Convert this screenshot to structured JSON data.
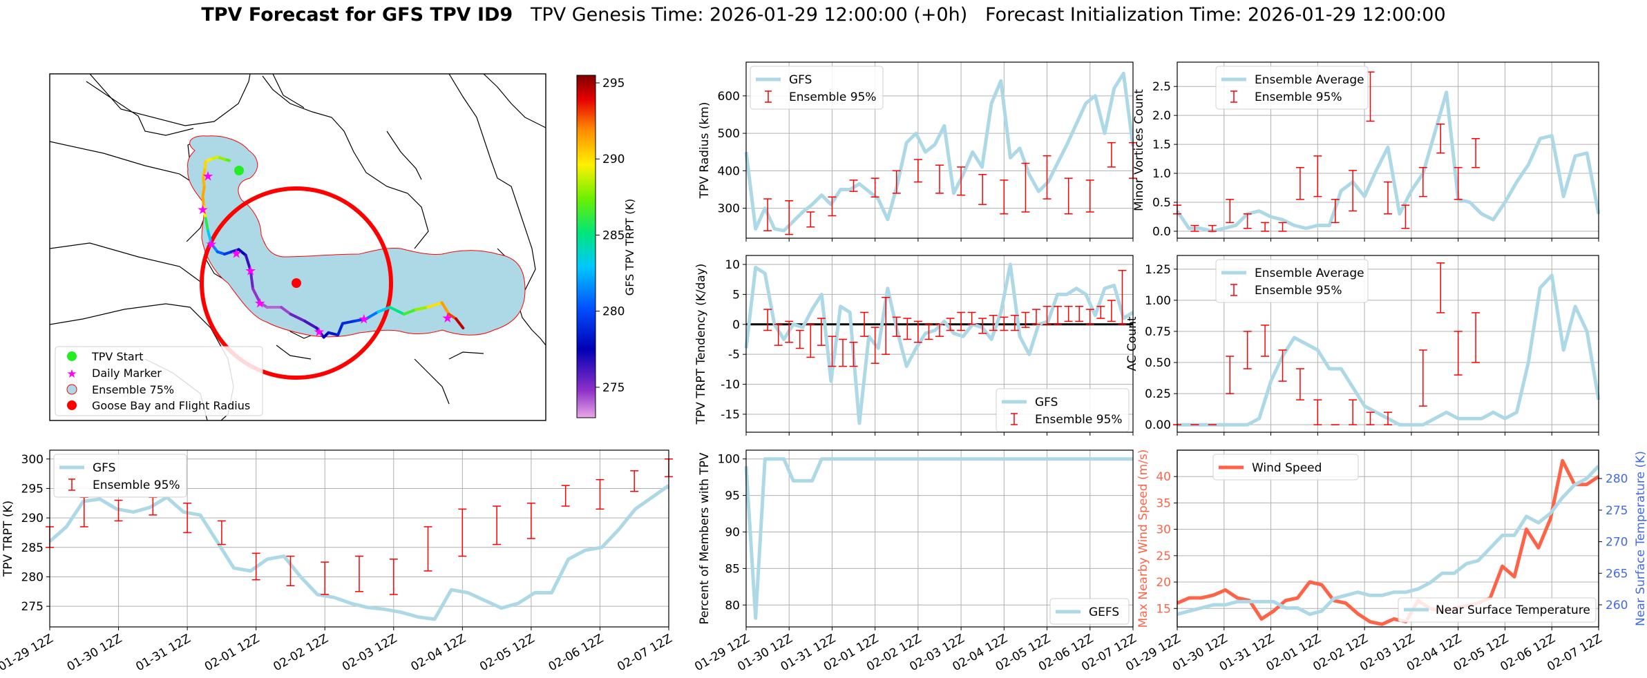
{
  "title": {
    "bold": "TPV Forecast for GFS TPV ID9",
    "genesis": "TPV Genesis Time: 2026-01-29 12:00:00 (+0h)",
    "init": "Forecast Initialization Time: 2026-01-29 12:00:00"
  },
  "colors": {
    "lightblue": "#add8e6",
    "red": "#ff0000",
    "wind": "#ff6347",
    "temp": "#4169e1",
    "grid": "#b0b0b0"
  },
  "time_ticks": [
    "01-29 12Z",
    "01-30 12Z",
    "01-31 12Z",
    "02-01 12Z",
    "02-02 12Z",
    "02-03 12Z",
    "02-04 12Z",
    "02-05 12Z",
    "02-06 12Z",
    "02-07 12Z"
  ],
  "map": {
    "colorbar_label": "GFS TPV TRPT (K)",
    "colorbar_ticks": [
      "275",
      "280",
      "285",
      "290",
      "295"
    ],
    "colorbar_range": [
      273,
      295.5
    ],
    "legend": [
      "TPV Start",
      "Daily Marker",
      "Ensemble 75%",
      "Goose Bay and Flight Radius"
    ],
    "track": [
      {
        "lon": -62,
        "lat": 70.5,
        "t": 286.5
      },
      {
        "lon": -63,
        "lat": 70.6,
        "t": 287.5
      },
      {
        "lon": -64.5,
        "lat": 70.8,
        "t": 288.5
      },
      {
        "lon": -66,
        "lat": 70.6,
        "t": 289.5
      },
      {
        "lon": -67,
        "lat": 70.4,
        "t": 290
      },
      {
        "lon": -67.2,
        "lat": 69.7,
        "t": 290.5
      },
      {
        "lon": -67.5,
        "lat": 69,
        "t": 291
      },
      {
        "lon": -67.3,
        "lat": 68.2,
        "t": 291
      },
      {
        "lon": -67.6,
        "lat": 67.4,
        "t": 291.5
      },
      {
        "lon": -67.4,
        "lat": 66.5,
        "t": 291
      },
      {
        "lon": -67.0,
        "lat": 65.5,
        "t": 288
      },
      {
        "lon": -66.5,
        "lat": 64.4,
        "t": 284
      },
      {
        "lon": -65.8,
        "lat": 63.3,
        "t": 282
      },
      {
        "lon": -64.5,
        "lat": 62.6,
        "t": 281
      },
      {
        "lon": -63,
        "lat": 62.4,
        "t": 280
      },
      {
        "lon": -61.5,
        "lat": 62.6,
        "t": 279
      },
      {
        "lon": -60,
        "lat": 62.8,
        "t": 278
      },
      {
        "lon": -58.5,
        "lat": 62.3,
        "t": 277
      },
      {
        "lon": -57.5,
        "lat": 61.0,
        "t": 276
      },
      {
        "lon": -57.0,
        "lat": 59.4,
        "t": 275
      },
      {
        "lon": -55.5,
        "lat": 58.2,
        "t": 274.5
      },
      {
        "lon": -54,
        "lat": 57.8,
        "t": 274
      },
      {
        "lon": -51,
        "lat": 57.8,
        "t": 274
      },
      {
        "lon": -49,
        "lat": 57.2,
        "t": 275
      },
      {
        "lon": -46,
        "lat": 56.6,
        "t": 276
      },
      {
        "lon": -43.5,
        "lat": 56.0,
        "t": 276.5
      },
      {
        "lon": -42,
        "lat": 55.2,
        "t": 277
      },
      {
        "lon": -41,
        "lat": 55.6,
        "t": 278
      },
      {
        "lon": -39,
        "lat": 55.4,
        "t": 278.5
      },
      {
        "lon": -38,
        "lat": 56.4,
        "t": 279
      },
      {
        "lon": -35.5,
        "lat": 56.6,
        "t": 279
      },
      {
        "lon": -33,
        "lat": 56.8,
        "t": 280
      },
      {
        "lon": -30.5,
        "lat": 57.4,
        "t": 282
      },
      {
        "lon": -28,
        "lat": 57.8,
        "t": 284
      },
      {
        "lon": -25,
        "lat": 57.2,
        "t": 286
      },
      {
        "lon": -22.5,
        "lat": 57.6,
        "t": 287
      },
      {
        "lon": -20,
        "lat": 57.8,
        "t": 289
      },
      {
        "lon": -17,
        "lat": 58.2,
        "t": 291
      },
      {
        "lon": -15.5,
        "lat": 57.2,
        "t": 292
      },
      {
        "lon": -14,
        "lat": 56.8,
        "t": 294
      },
      {
        "lon": -12.5,
        "lat": 56.0,
        "t": 295
      }
    ],
    "start": {
      "lon": -62,
      "lat": 70.5
    },
    "daily_markers": [
      {
        "lon": -66.5,
        "lat": 69.2
      },
      {
        "lon": -67.6,
        "lat": 66.3
      },
      {
        "lon": -65.8,
        "lat": 63.3
      },
      {
        "lon": -60.5,
        "lat": 62.5
      },
      {
        "lon": -57.5,
        "lat": 61.0
      },
      {
        "lon": -55.5,
        "lat": 58.2
      },
      {
        "lon": -43,
        "lat": 55.7
      },
      {
        "lon": -33.5,
        "lat": 56.8
      },
      {
        "lon": -15.8,
        "lat": 56.9
      }
    ],
    "goose_bay": {
      "lon": -60.4,
      "lat": 53.3
    },
    "flight_radius_deg": 8
  },
  "radius": {
    "ylabel": "TPV Radius (km)",
    "yticks": [
      300,
      400,
      500,
      600
    ],
    "ylim": [
      220,
      690
    ],
    "legend": [
      "GFS",
      "Ensemble 95%"
    ],
    "gfs": [
      450,
      245,
      300,
      245,
      240,
      265,
      290,
      310,
      335,
      310,
      350,
      350,
      365,
      345,
      325,
      270,
      360,
      475,
      500,
      450,
      470,
      520,
      340,
      390,
      450,
      410,
      580,
      640,
      435,
      460,
      390,
      345,
      370,
      420,
      470,
      525,
      580,
      600,
      500,
      620,
      660,
      465
    ],
    "ens": [
      {
        "t": 4,
        "lo": 240,
        "hi": 325
      },
      {
        "t": 8,
        "lo": 230,
        "hi": 320
      },
      {
        "t": 12,
        "lo": 250,
        "hi": 290
      },
      {
        "t": 16,
        "lo": 280,
        "hi": 330
      },
      {
        "t": 20,
        "lo": 345,
        "hi": 375
      },
      {
        "t": 24,
        "lo": 330,
        "hi": 380
      },
      {
        "t": 28,
        "lo": 340,
        "hi": 400
      },
      {
        "t": 32,
        "lo": 370,
        "hi": 430
      },
      {
        "t": 36,
        "lo": 340,
        "hi": 415
      },
      {
        "t": 40,
        "lo": 335,
        "hi": 410
      },
      {
        "t": 44,
        "lo": 310,
        "hi": 390
      },
      {
        "t": 48,
        "lo": 285,
        "hi": 375
      },
      {
        "t": 52,
        "lo": 290,
        "hi": 420
      },
      {
        "t": 56,
        "lo": 325,
        "hi": 440
      },
      {
        "t": 60,
        "lo": 285,
        "hi": 380
      },
      {
        "t": 64,
        "lo": 290,
        "hi": 375
      },
      {
        "t": 68,
        "lo": 410,
        "hi": 475
      },
      {
        "t": 72,
        "lo": 380,
        "hi": 475
      }
    ]
  },
  "tendency": {
    "ylabel": "TPV TRPT Tendency (K/day)",
    "yticks": [
      -15,
      -10,
      -5,
      0,
      5,
      10
    ],
    "ylim": [
      -18,
      11.5
    ],
    "legend": [
      "GFS",
      "Ensemble 95%"
    ],
    "gfs": [
      -4,
      9.5,
      8.5,
      0,
      -2.5,
      0,
      -0.5,
      2.5,
      5,
      -9.5,
      3,
      2,
      -16.5,
      -2,
      -4,
      6,
      -1,
      -7,
      -4,
      -1.5,
      -1,
      0.5,
      -1.5,
      -2,
      0,
      -0.5,
      -2.5,
      2,
      10,
      -2,
      -5,
      0,
      0.5,
      5,
      5,
      6,
      5,
      1.5,
      6,
      6.5,
      1,
      2
    ],
    "ens": [
      {
        "t": 4,
        "lo": -1,
        "hi": 2.5
      },
      {
        "t": 6,
        "lo": -3.5,
        "hi": 0
      },
      {
        "t": 8,
        "lo": -3,
        "hi": 0.5
      },
      {
        "t": 10,
        "lo": -4,
        "hi": -1
      },
      {
        "t": 12,
        "lo": -5.5,
        "hi": 0
      },
      {
        "t": 14,
        "lo": -3.5,
        "hi": 1
      },
      {
        "t": 16,
        "lo": -7,
        "hi": -2
      },
      {
        "t": 18,
        "lo": -7,
        "hi": -2.5
      },
      {
        "t": 20,
        "lo": -7,
        "hi": -3
      },
      {
        "t": 22,
        "lo": -2,
        "hi": 2
      },
      {
        "t": 24,
        "lo": -6.5,
        "hi": -0.5
      },
      {
        "t": 26,
        "lo": -5,
        "hi": 4.5
      },
      {
        "t": 28,
        "lo": -2,
        "hi": 1.2
      },
      {
        "t": 30,
        "lo": -2.5,
        "hi": 1
      },
      {
        "t": 32,
        "lo": -3,
        "hi": 0.5
      },
      {
        "t": 34,
        "lo": -2.5,
        "hi": 0
      },
      {
        "t": 36,
        "lo": -2,
        "hi": 0
      },
      {
        "t": 38,
        "lo": -1,
        "hi": 1
      },
      {
        "t": 40,
        "lo": -1,
        "hi": 2
      },
      {
        "t": 42,
        "lo": 0,
        "hi": 2
      },
      {
        "t": 44,
        "lo": -1.5,
        "hi": 1
      },
      {
        "t": 46,
        "lo": -1,
        "hi": 1.5
      },
      {
        "t": 48,
        "lo": -1,
        "hi": 1.2
      },
      {
        "t": 50,
        "lo": -1,
        "hi": 1.5
      },
      {
        "t": 52,
        "lo": -0.5,
        "hi": 2
      },
      {
        "t": 54,
        "lo": 0,
        "hi": 2.5
      },
      {
        "t": 56,
        "lo": 0,
        "hi": 3
      },
      {
        "t": 58,
        "lo": 0,
        "hi": 3
      },
      {
        "t": 60,
        "lo": 0.5,
        "hi": 3
      },
      {
        "t": 62,
        "lo": 0.5,
        "hi": 3
      },
      {
        "t": 64,
        "lo": 0,
        "hi": 2.5
      },
      {
        "t": 66,
        "lo": 1,
        "hi": 3
      },
      {
        "t": 68,
        "lo": 0.5,
        "hi": 4
      },
      {
        "t": 70,
        "lo": 0,
        "hi": 9
      }
    ]
  },
  "minor": {
    "ylabel": "Minor Vortices Count",
    "yticks": [
      "0.0",
      "0.5",
      "1.0",
      "1.5",
      "2.0",
      "2.5"
    ],
    "ylim": [
      -0.12,
      2.92
    ],
    "legend": [
      "Ensemble Average",
      "Ensemble 95%"
    ],
    "avg": [
      0.35,
      0.05,
      0.05,
      0.0,
      0.05,
      0.1,
      0.3,
      0.35,
      0.25,
      0.2,
      0.1,
      0.05,
      0.1,
      0.1,
      0.7,
      0.85,
      0.6,
      1.05,
      1.45,
      0.3,
      0.7,
      1.0,
      1.7,
      2.4,
      0.55,
      0.5,
      0.3,
      0.2,
      0.5,
      0.85,
      1.15,
      1.6,
      1.65,
      0.6,
      1.3,
      1.35,
      0.3
    ],
    "ens": [
      {
        "t": 0,
        "lo": 0.3,
        "hi": 0.45
      },
      {
        "t": 3,
        "lo": 0,
        "hi": 0.1
      },
      {
        "t": 6,
        "lo": 0,
        "hi": 0.1
      },
      {
        "t": 9,
        "lo": 0.15,
        "hi": 0.55
      },
      {
        "t": 12,
        "lo": 0.05,
        "hi": 0.3
      },
      {
        "t": 15,
        "lo": 0,
        "hi": 0.15
      },
      {
        "t": 18,
        "lo": 0,
        "hi": 0.15
      },
      {
        "t": 21,
        "lo": 0.55,
        "hi": 1.1
      },
      {
        "t": 24,
        "lo": 0.6,
        "hi": 1.3
      },
      {
        "t": 27,
        "lo": 0.15,
        "hi": 0.55
      },
      {
        "t": 30,
        "lo": 0.35,
        "hi": 1.05
      },
      {
        "t": 33,
        "lo": 1.9,
        "hi": 2.75
      },
      {
        "t": 36,
        "lo": 0.3,
        "hi": 0.85
      },
      {
        "t": 39,
        "lo": 0.05,
        "hi": 0.45
      },
      {
        "t": 42,
        "lo": 0.6,
        "hi": 1.1
      },
      {
        "t": 45,
        "lo": 1.35,
        "hi": 1.85
      },
      {
        "t": 48,
        "lo": 0.55,
        "hi": 1.1
      },
      {
        "t": 51,
        "lo": 1.1,
        "hi": 1.6
      }
    ]
  },
  "ac": {
    "ylabel": "AC Count",
    "yticks": [
      "0.00",
      "0.25",
      "0.50",
      "0.75",
      "1.00",
      "1.25"
    ],
    "ylim": [
      -0.06,
      1.36
    ],
    "legend": [
      "Ensemble Average",
      "Ensemble 95%"
    ],
    "avg": [
      0,
      0,
      0,
      0,
      0,
      0,
      0,
      0.05,
      0.35,
      0.55,
      0.7,
      0.65,
      0.6,
      0.45,
      0.45,
      0.3,
      0.15,
      0.1,
      0.05,
      0.0,
      0.0,
      0.0,
      0.05,
      0.1,
      0.05,
      0.05,
      0.05,
      0.1,
      0.05,
      0.1,
      0.5,
      1.1,
      1.2,
      0.6,
      0.95,
      0.75,
      0.2
    ],
    "ens": [
      {
        "t": 0,
        "lo": 0,
        "hi": 0
      },
      {
        "t": 3,
        "lo": 0,
        "hi": 0
      },
      {
        "t": 6,
        "lo": 0,
        "hi": 0
      },
      {
        "t": 9,
        "lo": 0.25,
        "hi": 0.55
      },
      {
        "t": 12,
        "lo": 0.45,
        "hi": 0.75
      },
      {
        "t": 15,
        "lo": 0.55,
        "hi": 0.8
      },
      {
        "t": 18,
        "lo": 0.35,
        "hi": 0.6
      },
      {
        "t": 21,
        "lo": 0.2,
        "hi": 0.45
      },
      {
        "t": 24,
        "lo": 0,
        "hi": 0.2
      },
      {
        "t": 27,
        "lo": 0,
        "hi": 0
      },
      {
        "t": 30,
        "lo": 0,
        "hi": 0.2
      },
      {
        "t": 33,
        "lo": 0,
        "hi": 0.1
      },
      {
        "t": 36,
        "lo": 0,
        "hi": 0.1
      },
      {
        "t": 42,
        "lo": 0.15,
        "hi": 0.6
      },
      {
        "t": 45,
        "lo": 0.9,
        "hi": 1.3
      },
      {
        "t": 48,
        "lo": 0.4,
        "hi": 0.75
      },
      {
        "t": 51,
        "lo": 0.5,
        "hi": 0.9
      }
    ]
  },
  "trpt": {
    "ylabel": "TPV TRPT (K)",
    "yticks": [
      275,
      280,
      285,
      290,
      295,
      300
    ],
    "ylim": [
      271.5,
      301.5
    ],
    "legend": [
      "GFS",
      "Ensemble 95%"
    ],
    "gfs": [
      286,
      288.5,
      292.8,
      293.2,
      291.5,
      291,
      291.8,
      293.5,
      291,
      290.5,
      286,
      281.5,
      281,
      283,
      283.5,
      280,
      277,
      276.5,
      275.5,
      274.8,
      274.5,
      274,
      273.2,
      272.8,
      277.8,
      277.3,
      276,
      274.7,
      275.5,
      277.3,
      277.3,
      283,
      284.5,
      285,
      288,
      291.5,
      293.5,
      295.5
    ],
    "ens": [
      {
        "t": 0,
        "lo": 285,
        "hi": 288.5
      },
      {
        "t": 4,
        "lo": 288.5,
        "hi": 293.5
      },
      {
        "t": 8,
        "lo": 289.5,
        "hi": 293
      },
      {
        "t": 12,
        "lo": 290.5,
        "hi": 293.5
      },
      {
        "t": 16,
        "lo": 287.5,
        "hi": 292.5
      },
      {
        "t": 20,
        "lo": 285.5,
        "hi": 289.5
      },
      {
        "t": 24,
        "lo": 279.5,
        "hi": 284
      },
      {
        "t": 28,
        "lo": 278.5,
        "hi": 283.5
      },
      {
        "t": 32,
        "lo": 277,
        "hi": 282.5
      },
      {
        "t": 36,
        "lo": 277.5,
        "hi": 283.5
      },
      {
        "t": 40,
        "lo": 277,
        "hi": 283
      },
      {
        "t": 44,
        "lo": 281,
        "hi": 288.5
      },
      {
        "t": 48,
        "lo": 283.5,
        "hi": 291.5
      },
      {
        "t": 52,
        "lo": 285.5,
        "hi": 292
      },
      {
        "t": 56,
        "lo": 286.5,
        "hi": 292.5
      },
      {
        "t": 60,
        "lo": 292,
        "hi": 295.5
      },
      {
        "t": 64,
        "lo": 291.5,
        "hi": 296.5
      },
      {
        "t": 68,
        "lo": 294.5,
        "hi": 298
      },
      {
        "t": 72,
        "lo": 297,
        "hi": 300
      }
    ]
  },
  "members": {
    "ylabel": "Percent of Members with TPV",
    "yticks": [
      80,
      85,
      90,
      95,
      100
    ],
    "ylim": [
      77,
      101.2
    ],
    "legend": [
      "GEFS"
    ],
    "values": [
      99,
      78.2,
      100,
      100,
      100,
      97,
      97,
      97,
      100,
      100,
      100,
      100,
      100,
      100,
      100,
      100,
      100,
      100,
      100,
      100,
      100,
      100,
      100,
      100,
      100,
      100,
      100,
      100,
      100,
      100,
      100,
      100,
      100,
      100,
      100,
      100,
      100,
      100,
      100,
      100,
      100,
      100
    ]
  },
  "wind": {
    "ylabel_left": "Max Nearby Wind Speed (m/s)",
    "ylabel_right": "Near Surface Temperature (K)",
    "yticks_left": [
      15,
      20,
      25,
      30,
      35,
      40
    ],
    "ylim_left": [
      11.5,
      45
    ],
    "yticks_right": [
      260,
      265,
      270,
      275,
      280
    ],
    "ylim_right": [
      256.5,
      284.5
    ],
    "legend_left": "Wind Speed",
    "legend_right": "Near Surface Temperature",
    "wind": [
      16,
      17,
      17,
      17.5,
      18.5,
      17,
      16.5,
      13,
      14.5,
      16.5,
      17,
      20,
      19.5,
      16.5,
      16,
      14,
      12.5,
      12,
      13,
      12.5,
      16.5,
      15,
      14.5,
      15,
      15.5,
      16,
      17,
      23,
      21,
      30,
      26.5,
      32,
      43,
      38.5,
      38.5,
      40
    ],
    "temp": [
      258.5,
      259,
      259.5,
      260,
      260,
      260.5,
      260.5,
      260.5,
      260.5,
      259.5,
      259.5,
      258.5,
      259,
      261,
      261.5,
      262,
      261.5,
      261.5,
      262,
      262,
      262.5,
      263.5,
      265,
      265,
      266.5,
      267,
      269,
      271,
      271,
      274,
      273,
      274.5,
      277,
      279,
      280,
      282
    ]
  }
}
